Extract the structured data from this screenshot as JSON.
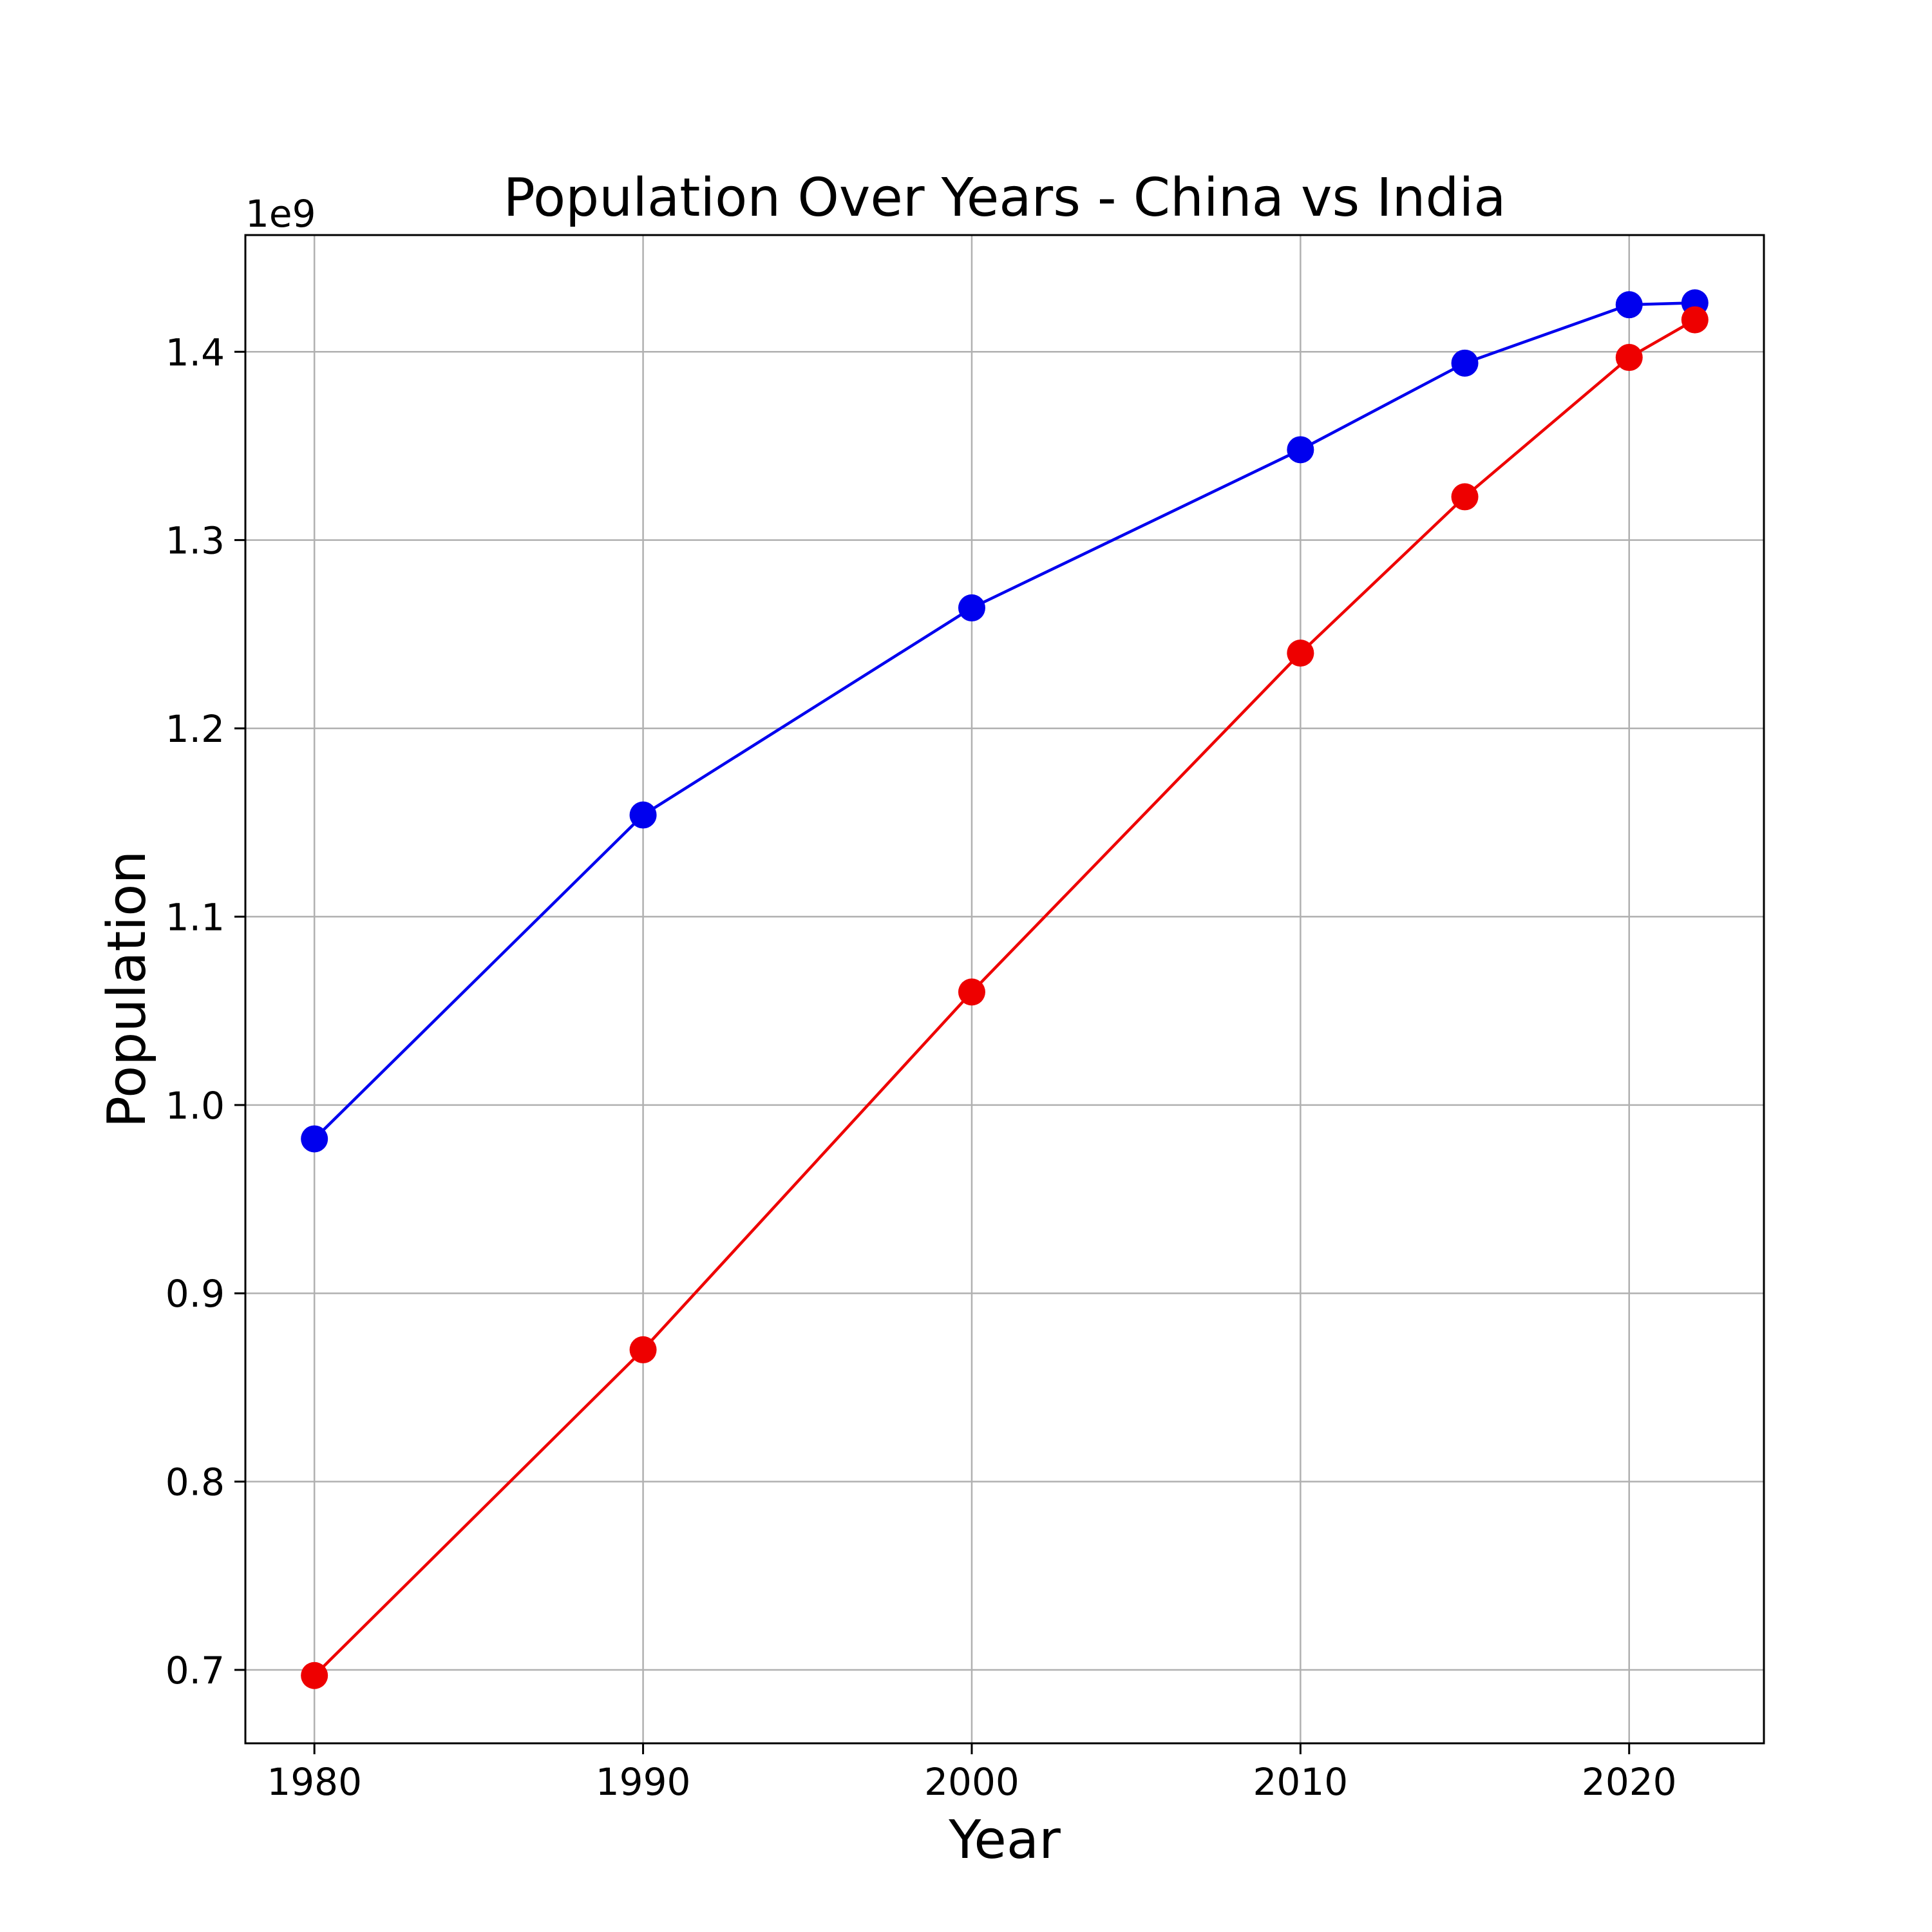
{
  "chart_data": {
    "type": "line",
    "title": "Population Over Years - China vs India",
    "xlabel": "Year",
    "ylabel": "Population",
    "y_offset_label": "1e9",
    "xlim": [
      1977.9,
      2024.1
    ],
    "ylim": [
      0.661,
      1.462
    ],
    "xticks": [
      1980,
      1990,
      2000,
      2010,
      2020
    ],
    "xtick_labels": [
      "1980",
      "1990",
      "2000",
      "2010",
      "2020"
    ],
    "yticks": [
      0.7,
      0.8,
      0.9,
      1.0,
      1.1,
      1.2,
      1.3,
      1.4
    ],
    "ytick_labels": [
      "0.7",
      "0.8",
      "0.9",
      "1.0",
      "1.1",
      "1.2",
      "1.3",
      "1.4"
    ],
    "y_scale_factor": 1000000000,
    "grid": true,
    "x": [
      1980,
      1990,
      2000,
      2010,
      2015,
      2020,
      2022
    ],
    "series": [
      {
        "color": "#0000ee",
        "marker": "circle",
        "values": [
          0.982,
          1.154,
          1.264,
          1.348,
          1.394,
          1.425,
          1.426
        ]
      },
      {
        "color": "#ee0000",
        "marker": "circle",
        "values": [
          0.697,
          0.87,
          1.06,
          1.24,
          1.323,
          1.397,
          1.417
        ]
      }
    ]
  }
}
